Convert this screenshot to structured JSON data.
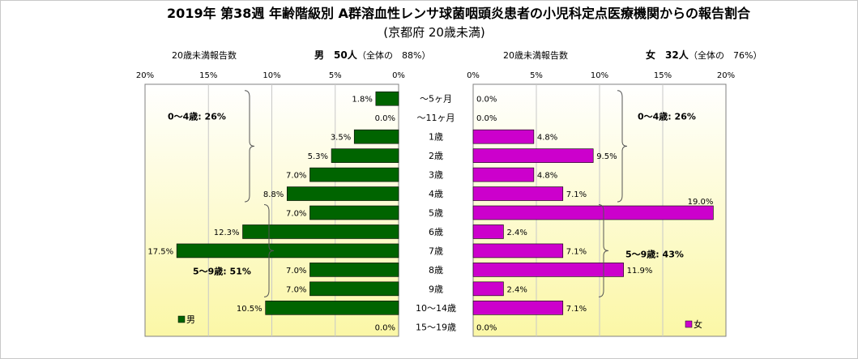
{
  "title": "2019年 第38週 年齢階級別 A群溶血性レンサ球菌咽頭炎患者の小児科定点医療機関からの報告割合",
  "subtitle": "(京都府 20歳未満)",
  "colors": {
    "male": "#006400",
    "female": "#cc00cc",
    "plot_top": "#ffffff",
    "plot_bottom": "#fbf7a6",
    "grid": "#c8c8c8",
    "axis": "#808080"
  },
  "chart_data": [
    {
      "type": "bar",
      "orientation": "horizontal",
      "side": "left",
      "header_left": "20歳未満報告数",
      "header_right": "男　50人",
      "header_note": "（全体の　88%）",
      "legend": "男",
      "xlim": [
        0,
        20
      ],
      "x_reversed": true,
      "ticks": [
        "20%",
        "15%",
        "10%",
        "5%",
        "0%"
      ],
      "categories": [
        "～5ヶ月",
        "～11ヶ月",
        "1歳",
        "2歳",
        "3歳",
        "4歳",
        "5歳",
        "6歳",
        "7歳",
        "8歳",
        "9歳",
        "10～14歳",
        "15～19歳"
      ],
      "series": [
        {
          "name": "男",
          "values": [
            1.8,
            0.0,
            3.5,
            5.3,
            7.0,
            8.8,
            7.0,
            12.3,
            17.5,
            7.0,
            7.0,
            10.5,
            0.0
          ],
          "labels": [
            "1.8%",
            "0.0%",
            "3.5%",
            "5.3%",
            "7.0%",
            "8.8%",
            "7.0%",
            "12.3%",
            "17.5%",
            "7.0%",
            "7.0%",
            "10.5%",
            "0.0%"
          ]
        }
      ],
      "groups": [
        {
          "label": "0～4歳: 26%",
          "from": 0,
          "to": 5
        },
        {
          "label": "5～9歳: 51%",
          "from": 6,
          "to": 10
        }
      ]
    },
    {
      "type": "bar",
      "orientation": "horizontal",
      "side": "right",
      "header_left": "20歳未満報告数",
      "header_right": "女　32人",
      "header_note": "（全体の　76%）",
      "legend": "女",
      "xlim": [
        0,
        20
      ],
      "x_reversed": false,
      "ticks": [
        "0%",
        "5%",
        "10%",
        "15%",
        "20%"
      ],
      "categories": [
        "～5ヶ月",
        "～11ヶ月",
        "1歳",
        "2歳",
        "3歳",
        "4歳",
        "5歳",
        "6歳",
        "7歳",
        "8歳",
        "9歳",
        "10～14歳",
        "15～19歳"
      ],
      "series": [
        {
          "name": "女",
          "values": [
            0.0,
            0.0,
            4.8,
            9.5,
            4.8,
            7.1,
            19.0,
            2.4,
            7.1,
            11.9,
            2.4,
            7.1,
            0.0
          ],
          "labels": [
            "0.0%",
            "0.0%",
            "4.8%",
            "9.5%",
            "4.8%",
            "7.1%",
            "19.0%",
            "2.4%",
            "7.1%",
            "11.9%",
            "2.4%",
            "7.1%",
            "0.0%"
          ]
        }
      ],
      "groups": [
        {
          "label": "0～4歳: 26%",
          "from": 0,
          "to": 5
        },
        {
          "label": "5～9歳: 43%",
          "from": 6,
          "to": 10
        }
      ]
    }
  ]
}
